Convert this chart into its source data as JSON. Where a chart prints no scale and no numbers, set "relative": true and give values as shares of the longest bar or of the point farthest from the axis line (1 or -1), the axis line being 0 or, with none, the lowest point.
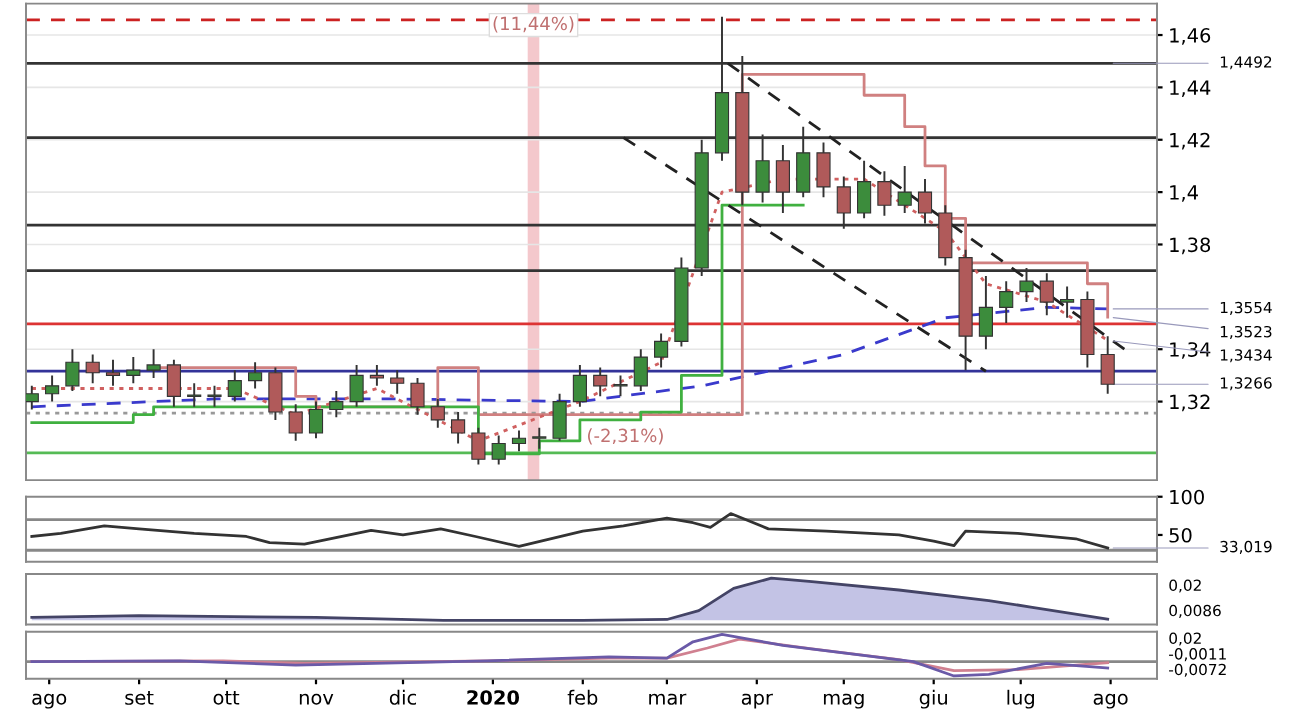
{
  "chart_data": [
    {
      "type": "candlestick",
      "x": [
        "2019-07-26",
        "2019-08-02",
        "2019-08-09",
        "2019-08-16",
        "2019-08-23",
        "2019-08-30",
        "2019-09-06",
        "2019-09-13",
        "2019-09-20",
        "2019-09-27",
        "2019-10-04",
        "2019-10-11",
        "2019-10-18",
        "2019-10-25",
        "2019-11-01",
        "2019-11-08",
        "2019-11-15",
        "2019-11-22",
        "2019-11-29",
        "2019-12-06",
        "2019-12-13",
        "2019-12-20",
        "2019-12-27",
        "2020-01-03",
        "2020-01-10",
        "2020-01-17",
        "2020-01-24",
        "2020-01-31",
        "2020-02-07",
        "2020-02-14",
        "2020-02-21",
        "2020-02-28",
        "2020-03-06",
        "2020-03-13",
        "2020-03-20",
        "2020-03-27",
        "2020-04-03",
        "2020-04-10",
        "2020-04-17",
        "2020-04-24",
        "2020-05-01",
        "2020-05-08",
        "2020-05-15",
        "2020-05-22",
        "2020-05-29",
        "2020-06-05",
        "2020-06-12",
        "2020-06-19",
        "2020-06-26",
        "2020-07-03",
        "2020-07-10",
        "2020-07-17",
        "2020-07-24",
        "2020-07-31"
      ],
      "ohlc": [
        [
          1.32,
          1.326,
          1.317,
          1.323
        ],
        [
          1.323,
          1.33,
          1.32,
          1.326
        ],
        [
          1.326,
          1.34,
          1.324,
          1.335
        ],
        [
          1.335,
          1.338,
          1.327,
          1.331
        ],
        [
          1.331,
          1.336,
          1.326,
          1.33
        ],
        [
          1.33,
          1.337,
          1.327,
          1.332
        ],
        [
          1.332,
          1.34,
          1.329,
          1.334
        ],
        [
          1.334,
          1.336,
          1.318,
          1.322
        ],
        [
          1.322,
          1.327,
          1.318,
          1.322
        ],
        [
          1.322,
          1.326,
          1.318,
          1.322
        ],
        [
          1.322,
          1.332,
          1.32,
          1.328
        ],
        [
          1.328,
          1.335,
          1.325,
          1.331
        ],
        [
          1.331,
          1.333,
          1.313,
          1.316
        ],
        [
          1.316,
          1.319,
          1.305,
          1.308
        ],
        [
          1.308,
          1.32,
          1.306,
          1.317
        ],
        [
          1.317,
          1.324,
          1.314,
          1.32
        ],
        [
          1.32,
          1.334,
          1.318,
          1.33
        ],
        [
          1.33,
          1.334,
          1.326,
          1.329
        ],
        [
          1.329,
          1.332,
          1.323,
          1.327
        ],
        [
          1.327,
          1.329,
          1.315,
          1.318
        ],
        [
          1.318,
          1.321,
          1.31,
          1.313
        ],
        [
          1.313,
          1.316,
          1.304,
          1.308
        ],
        [
          1.308,
          1.31,
          1.296,
          1.298
        ],
        [
          1.298,
          1.307,
          1.296,
          1.304
        ],
        [
          1.304,
          1.309,
          1.301,
          1.306
        ],
        [
          1.306,
          1.31,
          1.302,
          1.306
        ],
        [
          1.306,
          1.323,
          1.305,
          1.32
        ],
        [
          1.32,
          1.334,
          1.318,
          1.33
        ],
        [
          1.33,
          1.333,
          1.322,
          1.326
        ],
        [
          1.326,
          1.33,
          1.322,
          1.326
        ],
        [
          1.326,
          1.34,
          1.324,
          1.337
        ],
        [
          1.337,
          1.346,
          1.333,
          1.343
        ],
        [
          1.343,
          1.375,
          1.341,
          1.371
        ],
        [
          1.371,
          1.42,
          1.368,
          1.415
        ],
        [
          1.415,
          1.467,
          1.412,
          1.438
        ],
        [
          1.438,
          1.452,
          1.395,
          1.4
        ],
        [
          1.4,
          1.422,
          1.396,
          1.412
        ],
        [
          1.412,
          1.418,
          1.392,
          1.4
        ],
        [
          1.4,
          1.425,
          1.398,
          1.415
        ],
        [
          1.415,
          1.419,
          1.398,
          1.402
        ],
        [
          1.402,
          1.406,
          1.386,
          1.392
        ],
        [
          1.392,
          1.412,
          1.39,
          1.404
        ],
        [
          1.404,
          1.408,
          1.391,
          1.395
        ],
        [
          1.395,
          1.41,
          1.392,
          1.4
        ],
        [
          1.4,
          1.405,
          1.388,
          1.392
        ],
        [
          1.392,
          1.395,
          1.372,
          1.375
        ],
        [
          1.375,
          1.378,
          1.332,
          1.345
        ],
        [
          1.345,
          1.368,
          1.34,
          1.356
        ],
        [
          1.356,
          1.366,
          1.35,
          1.362
        ],
        [
          1.362,
          1.371,
          1.358,
          1.366
        ],
        [
          1.366,
          1.369,
          1.353,
          1.358
        ],
        [
          1.358,
          1.364,
          1.352,
          1.359
        ],
        [
          1.359,
          1.362,
          1.333,
          1.338
        ],
        [
          1.338,
          1.345,
          1.323,
          1.3266
        ]
      ],
      "colors": [
        "#3c8c3c",
        "#3c8c3c",
        "#3c8c3c",
        "#b05a5a",
        "#b05a5a",
        "#3c8c3c",
        "#3c8c3c",
        "#b05a5a",
        "#3c8c3c",
        "#3c8c3c",
        "#3c8c3c",
        "#3c8c3c",
        "#b05a5a",
        "#b05a5a",
        "#3c8c3c",
        "#3c8c3c",
        "#3c8c3c",
        "#b05a5a",
        "#b05a5a",
        "#b05a5a",
        "#b05a5a",
        "#b05a5a",
        "#b05a5a",
        "#3c8c3c",
        "#3c8c3c",
        "#3c8c3c",
        "#3c8c3c",
        "#3c8c3c",
        "#b05a5a",
        "#3c8c3c",
        "#3c8c3c",
        "#3c8c3c",
        "#3c8c3c",
        "#3c8c3c",
        "#3c8c3c",
        "#b05a5a",
        "#3c8c3c",
        "#b05a5a",
        "#3c8c3c",
        "#b05a5a",
        "#b05a5a",
        "#3c8c3c",
        "#b05a5a",
        "#3c8c3c",
        "#b05a5a",
        "#b05a5a",
        "#b05a5a",
        "#3c8c3c",
        "#3c8c3c",
        "#3c8c3c",
        "#b05a5a",
        "#3c8c3c",
        "#b05a5a",
        "#b05a5a"
      ],
      "series": [
        {
          "type": "line",
          "color": "#3a3acc",
          "line_style": "dashed",
          "x": [
            "2019-07-26",
            "2019-09-27",
            "2019-11-29",
            "2020-01-31",
            "2020-03-13",
            "2020-05-01",
            "2020-06-05",
            "2020-07-10",
            "2020-07-31"
          ],
          "values": [
            1.318,
            1.321,
            1.321,
            1.32,
            1.326,
            1.338,
            1.352,
            1.356,
            1.3554
          ]
        },
        {
          "type": "step",
          "color": "#d08080",
          "line_style": "solid",
          "x": [
            "2019-09-06",
            "2019-10-18",
            "2019-10-25",
            "2019-11-01",
            "2019-12-13",
            "2019-12-27",
            "2020-01-24",
            "2020-03-27",
            "2020-05-08",
            "2020-05-22",
            "2020-05-29",
            "2020-06-05",
            "2020-06-12",
            "2020-07-17",
            "2020-07-24",
            "2020-07-31"
          ],
          "values": [
            1.333,
            1.333,
            1.322,
            1.318,
            1.333,
            1.315,
            1.315,
            1.445,
            1.437,
            1.425,
            1.41,
            1.39,
            1.373,
            1.373,
            1.365,
            1.3523
          ]
        },
        {
          "type": "step",
          "color": "#40b040",
          "line_style": "solid",
          "x": [
            "2019-07-26",
            "2019-08-30",
            "2019-09-06",
            "2019-11-01",
            "2019-12-27",
            "2020-01-17",
            "2020-01-31",
            "2020-02-21",
            "2020-03-06",
            "2020-03-20",
            "2020-04-17"
          ],
          "values": [
            1.312,
            1.315,
            1.318,
            1.318,
            1.3,
            1.305,
            1.313,
            1.316,
            1.33,
            1.395,
            1.395
          ]
        },
        {
          "type": "line",
          "color": "#d06060",
          "line_style": "dotted",
          "x": [
            "2019-07-26",
            "2019-10-04",
            "2019-10-25",
            "2019-11-22",
            "2019-12-27",
            "2020-01-31",
            "2020-02-28",
            "2020-03-20",
            "2020-04-10",
            "2020-05-08",
            "2020-06-05",
            "2020-06-19",
            "2020-07-10",
            "2020-07-31"
          ],
          "values": [
            1.325,
            1.325,
            1.315,
            1.325,
            1.305,
            1.32,
            1.335,
            1.4,
            1.405,
            1.405,
            1.385,
            1.365,
            1.358,
            1.3434
          ]
        },
        {
          "type": "line",
          "color": "#222222",
          "line_style": "dashed",
          "x": [
            "2020-03-22",
            "2020-08-07"
          ],
          "values": [
            1.4492,
            1.339
          ]
        },
        {
          "type": "line",
          "color": "#222222",
          "line_style": "dashed",
          "x": [
            "2020-02-15",
            "2020-06-19"
          ],
          "values": [
            1.4208,
            1.3316
          ]
        }
      ],
      "ylim": [
        1.29,
        1.472
      ],
      "yticks": [
        {
          "value": 1.46,
          "label": "1,46"
        },
        {
          "value": 1.44,
          "label": "1,44"
        },
        {
          "value": 1.42,
          "label": "1,42"
        },
        {
          "value": 1.4,
          "label": "1,4"
        },
        {
          "value": 1.38,
          "label": "1,38"
        },
        {
          "value": 1.34,
          "label": "1,34"
        },
        {
          "value": 1.32,
          "label": "1,32"
        }
      ],
      "xlim": [
        "2019-07-24",
        "2020-08-17"
      ],
      "grid": "y",
      "tick_labels": "y",
      "ref_lines": [
        {
          "axis": "y",
          "value": 1.4658,
          "color": "#cc2222",
          "line_style": "dashed"
        },
        {
          "axis": "y",
          "value": 1.4492,
          "color": "#333333",
          "line_style": "solid"
        },
        {
          "axis": "y",
          "value": 1.4208,
          "color": "#333333",
          "line_style": "solid"
        },
        {
          "axis": "y",
          "value": 1.3874,
          "color": "#333333",
          "line_style": "solid"
        },
        {
          "axis": "y",
          "value": 1.37,
          "color": "#333333",
          "line_style": "solid"
        },
        {
          "axis": "y",
          "value": 1.3497,
          "color": "#dd3333",
          "line_style": "solid"
        },
        {
          "axis": "y",
          "value": 1.3316,
          "color": "#333399",
          "line_style": "solid"
        },
        {
          "axis": "y",
          "value": 1.3156,
          "color": "#999999",
          "line_style": "dotted"
        },
        {
          "axis": "y",
          "value": 1.3004,
          "color": "#55bb55",
          "line_style": "solid"
        }
      ],
      "bands": [
        {
          "axis": "x",
          "from": "2020-01-13",
          "to": "2020-01-17",
          "label": "(11,44%)",
          "color": "#f4c8cc"
        }
      ],
      "annotations": [
        "(-2,31%)",
        {
          "text": "1,4492",
          "x": "2020-07-31",
          "y": 1.4492
        },
        {
          "text": "1,3554",
          "x": "2020-07-31",
          "y": 1.3554
        },
        {
          "text": "1,3523",
          "x": "2020-07-31",
          "y": 1.3523
        },
        {
          "text": "1,3434",
          "x": "2020-07-31",
          "y": 1.3434
        },
        {
          "text": "1,3266",
          "x": "2020-07-31",
          "y": 1.3266
        }
      ]
    },
    {
      "type": "line",
      "series": [
        {
          "color": "#333333",
          "x": [
            "2019-07-26",
            "2019-08-05",
            "2019-08-20",
            "2019-09-01",
            "2019-09-20",
            "2019-10-08",
            "2019-10-16",
            "2019-10-28",
            "2019-11-20",
            "2019-12-01",
            "2019-12-14",
            "2019-12-26",
            "2020-01-10",
            "2020-02-01",
            "2020-02-15",
            "2020-03-01",
            "2020-03-10",
            "2020-03-16",
            "2020-03-23",
            "2020-04-05",
            "2020-04-25",
            "2020-05-20",
            "2020-06-01",
            "2020-06-08",
            "2020-06-12",
            "2020-06-30",
            "2020-07-20",
            "2020-07-31"
          ],
          "values": [
            48,
            52,
            62,
            58,
            52,
            48,
            40,
            38,
            56,
            50,
            58,
            48,
            35,
            55,
            62,
            72,
            66,
            60,
            78,
            58,
            55,
            50,
            42,
            36,
            55,
            52,
            45,
            33
          ]
        }
      ],
      "ylim": [
        15,
        100
      ],
      "yticks": [
        50,
        100
      ],
      "xlim": [
        "2019-07-24",
        "2020-08-17"
      ],
      "tick_labels": "y",
      "ref_lines": [
        {
          "axis": "y",
          "value": 70,
          "color": "#888888",
          "line_style": "solid"
        },
        {
          "axis": "y",
          "value": 30,
          "color": "#888888",
          "line_style": "solid"
        }
      ],
      "annotations": [
        {
          "text": "33,019",
          "x": "2020-07-31",
          "y": 33
        }
      ]
    },
    {
      "type": "area",
      "series": [
        {
          "color": "#8888cc",
          "x": [
            "2019-07-26",
            "2019-09-01",
            "2019-11-01",
            "2019-12-15",
            "2020-02-01",
            "2020-03-01",
            "2020-03-12",
            "2020-03-24",
            "2020-04-06",
            "2020-04-20",
            "2020-05-20",
            "2020-06-20",
            "2020-07-05",
            "2020-07-31"
          ],
          "values": [
            0.07,
            0.11,
            0.07,
            0,
            0,
            0.02,
            0.23,
            0.76,
            1,
            0.92,
            0.72,
            0.47,
            0.31,
            0.03
          ]
        }
      ],
      "relative": true,
      "xlim": [
        "2019-07-24",
        "2020-08-17"
      ],
      "tick_labels": false,
      "annotations": [
        "0,02",
        "0,0086"
      ]
    },
    {
      "type": "line",
      "series": [
        {
          "color": "#d08090",
          "x": [
            "2019-07-26",
            "2019-09-30",
            "2019-10-28",
            "2019-12-30",
            "2020-02-10",
            "2020-03-01",
            "2020-03-15",
            "2020-03-26",
            "2020-04-20",
            "2020-05-20",
            "2020-06-08",
            "2020-06-30",
            "2020-07-20",
            "2020-07-31"
          ],
          "values": [
            0,
            0.03,
            -0.07,
            0.03,
            0.13,
            0.13,
            0.5,
            0.83,
            0.47,
            0.07,
            -0.33,
            -0.3,
            -0.13,
            -0.04
          ]
        },
        {
          "color": "#6a5aa8",
          "x": [
            "2019-07-26",
            "2019-09-15",
            "2019-10-25",
            "2019-12-30",
            "2020-02-10",
            "2020-03-01",
            "2020-03-10",
            "2020-03-20",
            "2020-04-10",
            "2020-05-05",
            "2020-05-25",
            "2020-06-08",
            "2020-06-20",
            "2020-07-10",
            "2020-07-31"
          ],
          "values": [
            0,
            0.03,
            -0.13,
            0.03,
            0.17,
            0.13,
            0.73,
            1,
            0.6,
            0.27,
            0,
            -0.53,
            -0.47,
            -0.07,
            -0.24
          ]
        }
      ],
      "relative": true,
      "tick_labels": "x",
      "xlim": [
        "2019-07-24",
        "2020-08-17"
      ],
      "xticks": [
        {
          "value": "2019-08-01",
          "label": "ago"
        },
        {
          "value": "2019-09-01",
          "label": "set"
        },
        {
          "value": "2019-10-01",
          "label": "ott"
        },
        {
          "value": "2019-11-01",
          "label": "nov"
        },
        {
          "value": "2019-12-01",
          "label": "dic"
        },
        {
          "value": "2020-01-01",
          "label": "2020"
        },
        {
          "value": "2020-02-01",
          "label": "feb"
        },
        {
          "value": "2020-03-01",
          "label": "mar"
        },
        {
          "value": "2020-04-01",
          "label": "apr"
        },
        {
          "value": "2020-05-01",
          "label": "mag"
        },
        {
          "value": "2020-06-01",
          "label": "giu"
        },
        {
          "value": "2020-07-01",
          "label": "lug"
        },
        {
          "value": "2020-08-01",
          "label": "ago"
        }
      ],
      "annotations": [
        "0,02",
        "-0,0011",
        "-0,0072"
      ]
    }
  ]
}
